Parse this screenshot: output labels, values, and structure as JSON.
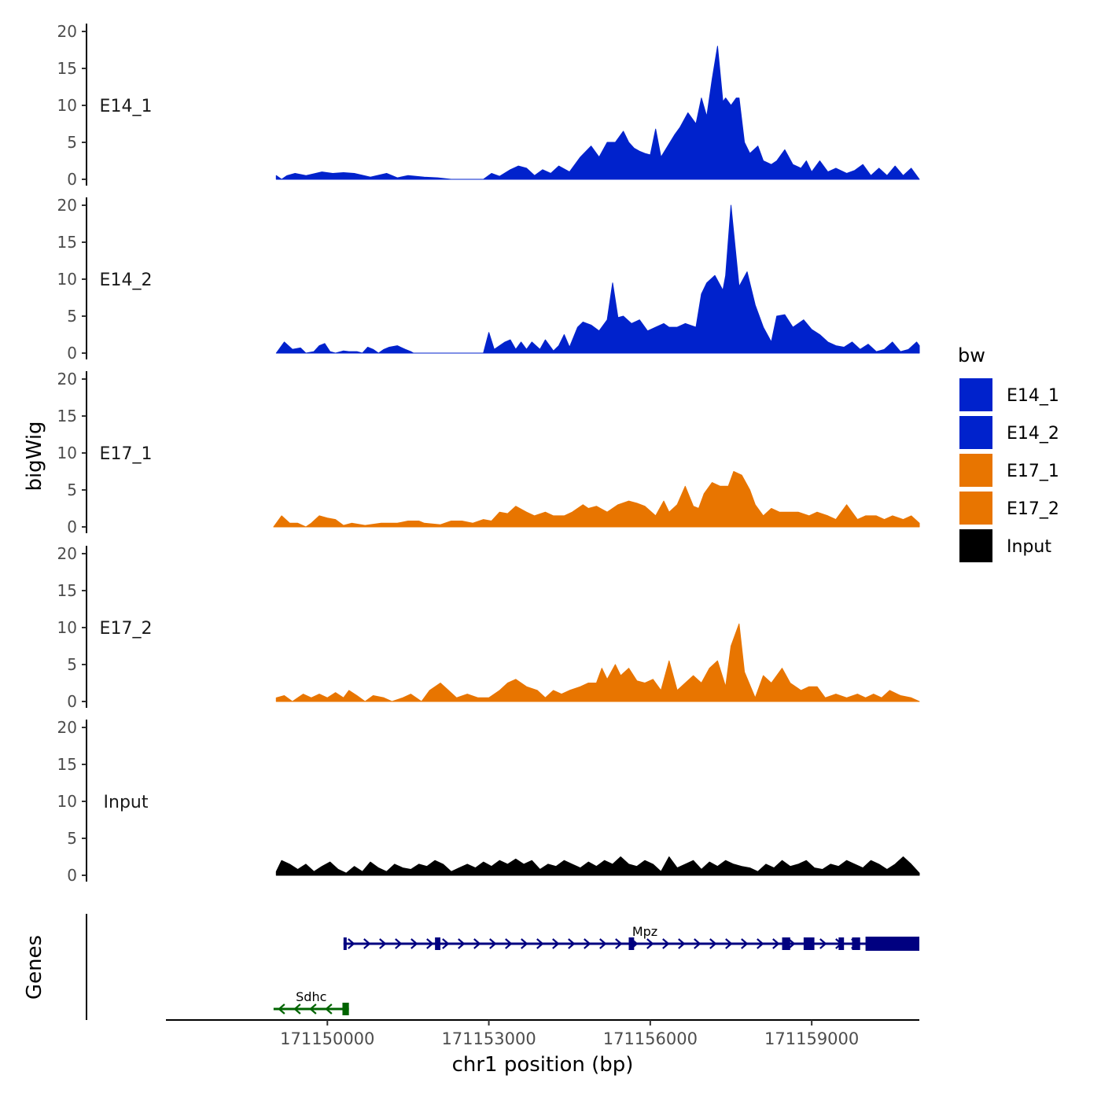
{
  "chart_data": {
    "type": "area",
    "y_axis_title": "bigWig",
    "x_axis_title": "chr1 position (bp)",
    "genes_axis_title": "Genes",
    "legend_title": "bw",
    "legend_position": "right",
    "x_range": [
      171147000,
      171161000
    ],
    "y_range": [
      0,
      20
    ],
    "y_ticks": [
      0,
      5,
      10,
      15,
      20
    ],
    "y_tick_labels": [
      "0",
      "5",
      "10",
      "15",
      "20"
    ],
    "x_ticks": [
      171150000,
      171153000,
      171156000,
      171159000
    ],
    "x_tick_labels": [
      "171150000",
      "171153000",
      "171156000",
      "171159000"
    ],
    "series": [
      {
        "name": "E14_1",
        "color": "#0022cc",
        "x": [
          171149050,
          171149150,
          171149250,
          171149400,
          171149600,
          171149900,
          171150100,
          171150300,
          171150500,
          171150800,
          171151100,
          171151300,
          171151500,
          171151800,
          171152050,
          171152300,
          171152500,
          171152900,
          171153050,
          171153200,
          171153400,
          171153550,
          171153700,
          171153850,
          171154000,
          171154150,
          171154300,
          171154500,
          171154700,
          171154900,
          171155050,
          171155200,
          171155350,
          171155500,
          171155600,
          171155700,
          171155800,
          171155900,
          171156000,
          171156100,
          171156200,
          171156350,
          171156450,
          171156550,
          171156700,
          171156850,
          171156950,
          171157050,
          171157150,
          171157250,
          171157350,
          171157400,
          171157500,
          171157600,
          171157650,
          171157750,
          171157850,
          171158000,
          171158100,
          171158250,
          171158350,
          171158500,
          171158650,
          171158800,
          171158900,
          171159000,
          171159150,
          171159300,
          171159450,
          171159650,
          171159800,
          171159950,
          171160100,
          171160250,
          171160400,
          171160550,
          171160700,
          171160850,
          171161000
        ],
        "y": [
          0.5,
          0,
          0.5,
          0.8,
          0.5,
          1.0,
          0.8,
          0.9,
          0.8,
          0.3,
          0.8,
          0.2,
          0.5,
          0.3,
          0.2,
          0,
          0,
          0,
          0.8,
          0.4,
          1.3,
          1.8,
          1.5,
          0.5,
          1.3,
          0.8,
          1.8,
          1.0,
          3.0,
          4.5,
          3.0,
          5.0,
          5.0,
          6.5,
          5.0,
          4.2,
          3.8,
          3.5,
          3.3,
          6.8,
          3.0,
          4.8,
          6.0,
          7.0,
          9.0,
          7.5,
          11.0,
          8.5,
          13.5,
          18.0,
          10.5,
          11.0,
          10.0,
          11.0,
          11.0,
          5.0,
          3.5,
          4.5,
          2.5,
          2.0,
          2.5,
          4.0,
          2.0,
          1.5,
          2.5,
          1.0,
          2.5,
          1.0,
          1.5,
          0.8,
          1.2,
          2.0,
          0.5,
          1.5,
          0.5,
          1.8,
          0.5,
          1.5,
          0
        ]
      },
      {
        "name": "E14_2",
        "color": "#0022cc",
        "x": [
          171149050,
          171149200,
          171149350,
          171149500,
          171149600,
          171149750,
          171149850,
          171149950,
          171150050,
          171150150,
          171150300,
          171150400,
          171150550,
          171150650,
          171150750,
          171150850,
          171150950,
          171151050,
          171151150,
          171151300,
          171151450,
          171151550,
          171151600,
          171152900,
          171153000,
          171153100,
          171153200,
          171153300,
          171153400,
          171153500,
          171153600,
          171153700,
          171153800,
          171153950,
          171154050,
          171154200,
          171154300,
          171154400,
          171154500,
          171154650,
          171154750,
          171154900,
          171155050,
          171155200,
          171155300,
          171155400,
          171155500,
          171155650,
          171155800,
          171155950,
          171156100,
          171156250,
          171156350,
          171156500,
          171156650,
          171156850,
          171156950,
          171157050,
          171157200,
          171157350,
          171157400,
          171157500,
          171157650,
          171157800,
          171157950,
          171158100,
          171158250,
          171158350,
          171158500,
          171158650,
          171158850,
          171159000,
          171159150,
          171159300,
          171159450,
          171159600,
          171159750,
          171159900,
          171160050,
          171160200,
          171160350,
          171160500,
          171160650,
          171160800,
          171160950,
          171161000
        ],
        "y": [
          0,
          1.5,
          0.5,
          0.7,
          0,
          0.2,
          1.0,
          1.3,
          0.2,
          0,
          0.3,
          0.2,
          0.2,
          0,
          0.8,
          0.5,
          0,
          0.5,
          0.8,
          1.0,
          0.5,
          0.2,
          0,
          0,
          2.8,
          0.5,
          1.0,
          1.5,
          1.8,
          0.5,
          1.5,
          0.5,
          1.5,
          0.5,
          1.8,
          0.3,
          1.0,
          2.5,
          0.8,
          3.5,
          4.2,
          3.8,
          3.0,
          4.5,
          9.5,
          4.8,
          5.0,
          4.0,
          4.5,
          3.0,
          3.5,
          4.0,
          3.5,
          3.5,
          4.0,
          3.5,
          8.0,
          9.5,
          10.5,
          8.5,
          10.5,
          20.0,
          9.0,
          11.0,
          6.5,
          3.5,
          1.5,
          5.0,
          5.2,
          3.5,
          4.5,
          3.2,
          2.5,
          1.5,
          1.0,
          0.8,
          1.5,
          0.5,
          1.2,
          0.2,
          0.5,
          1.5,
          0.2,
          0.5,
          1.5,
          1.0
        ]
      },
      {
        "name": "E17_1",
        "color": "#e87500",
        "x": [
          171149000,
          171149150,
          171149300,
          171149450,
          171149600,
          171149700,
          171149850,
          171150000,
          171150150,
          171150300,
          171150450,
          171150700,
          171151000,
          171151300,
          171151500,
          171151700,
          171151800,
          171152100,
          171152300,
          171152500,
          171152700,
          171152900,
          171153050,
          171153200,
          171153350,
          171153500,
          171153700,
          171153850,
          171154050,
          171154200,
          171154400,
          171154550,
          171154750,
          171154850,
          171155000,
          171155200,
          171155400,
          171155600,
          171155750,
          171155900,
          171156100,
          171156250,
          171156350,
          171156500,
          171156650,
          171156800,
          171156900,
          171157000,
          171157150,
          171157300,
          171157450,
          171157550,
          171157700,
          171157850,
          171157950,
          171158100,
          171158250,
          171158400,
          171158550,
          171158750,
          171158950,
          171159100,
          171159300,
          171159450,
          171159650,
          171159850,
          171160000,
          171160200,
          171160350,
          171160500,
          171160700,
          171160850,
          171161000
        ],
        "y": [
          0,
          1.5,
          0.5,
          0.5,
          0,
          0.5,
          1.5,
          1.2,
          1.0,
          0.2,
          0.5,
          0.2,
          0.5,
          0.5,
          0.8,
          0.8,
          0.5,
          0.3,
          0.8,
          0.8,
          0.5,
          1.0,
          0.8,
          2.0,
          1.8,
          2.8,
          2.0,
          1.5,
          2.0,
          1.5,
          1.5,
          2.0,
          3.0,
          2.5,
          2.8,
          2.0,
          3.0,
          3.5,
          3.2,
          2.8,
          1.5,
          3.5,
          2.0,
          3.0,
          5.5,
          2.8,
          2.5,
          4.5,
          6.0,
          5.5,
          5.5,
          7.5,
          7.0,
          5.0,
          3.0,
          1.5,
          2.5,
          2.0,
          2.0,
          2.0,
          1.5,
          2.0,
          1.5,
          1.0,
          3.0,
          1.0,
          1.5,
          1.5,
          1.0,
          1.5,
          1.0,
          1.5,
          0.5
        ]
      },
      {
        "name": "E17_2",
        "color": "#e87500",
        "x": [
          171149050,
          171149200,
          171149350,
          171149550,
          171149700,
          171149850,
          171150000,
          171150150,
          171150300,
          171150400,
          171150550,
          171150700,
          171150850,
          171151050,
          171151200,
          171151400,
          171151550,
          171151750,
          171151900,
          171152100,
          171152250,
          171152400,
          171152600,
          171152800,
          171153000,
          171153200,
          171153350,
          171153500,
          171153700,
          171153900,
          171154050,
          171154200,
          171154350,
          171154500,
          171154700,
          171154850,
          171155000,
          171155100,
          171155200,
          171155350,
          171155450,
          171155600,
          171155750,
          171155900,
          171156050,
          171156200,
          171156350,
          171156500,
          171156650,
          171156800,
          171156950,
          171157100,
          171157250,
          171157400,
          171157500,
          171157650,
          171157750,
          171157950,
          171158100,
          171158250,
          171158450,
          171158600,
          171158800,
          171158950,
          171159100,
          171159250,
          171159450,
          171159650,
          171159850,
          171160000,
          171160150,
          171160300,
          171160450,
          171160650,
          171160850,
          171161000
        ],
        "y": [
          0.5,
          0.8,
          0,
          1.0,
          0.5,
          1.0,
          0.5,
          1.2,
          0.5,
          1.5,
          0.8,
          0,
          0.8,
          0.5,
          0,
          0.5,
          1.0,
          0,
          1.5,
          2.5,
          1.5,
          0.5,
          1.0,
          0.5,
          0.5,
          1.5,
          2.5,
          3.0,
          2.0,
          1.5,
          0.5,
          1.5,
          1.0,
          1.5,
          2.0,
          2.5,
          2.5,
          4.5,
          3.0,
          5.0,
          3.5,
          4.5,
          2.8,
          2.5,
          3.0,
          1.5,
          5.5,
          1.5,
          2.5,
          3.5,
          2.5,
          4.5,
          5.5,
          2.0,
          7.5,
          10.5,
          4.0,
          0.5,
          3.5,
          2.5,
          4.5,
          2.5,
          1.5,
          2.0,
          2.0,
          0.5,
          1.0,
          0.5,
          1.0,
          0.5,
          1.0,
          0.5,
          1.5,
          0.8,
          0.5,
          0
        ]
      },
      {
        "name": "Input",
        "color": "#000000",
        "x": [
          171149050,
          171149150,
          171149300,
          171149450,
          171149600,
          171149750,
          171149900,
          171150050,
          171150200,
          171150350,
          171150500,
          171150650,
          171150800,
          171150950,
          171151100,
          171151250,
          171151400,
          171151550,
          171151700,
          171151850,
          171152000,
          171152150,
          171152300,
          171152450,
          171152600,
          171152750,
          171152900,
          171153050,
          171153200,
          171153350,
          171153500,
          171153650,
          171153800,
          171153950,
          171154100,
          171154250,
          171154400,
          171154550,
          171154700,
          171154850,
          171155000,
          171155150,
          171155300,
          171155450,
          171155600,
          171155750,
          171155900,
          171156050,
          171156200,
          171156350,
          171156500,
          171156650,
          171156800,
          171156950,
          171157100,
          171157250,
          171157400,
          171157550,
          171157700,
          171157850,
          171158000,
          171158150,
          171158300,
          171158450,
          171158600,
          171158750,
          171158900,
          171159050,
          171159200,
          171159350,
          171159500,
          171159650,
          171159800,
          171159950,
          171160100,
          171160250,
          171160400,
          171160550,
          171160700,
          171160850,
          171161000
        ],
        "y": [
          0.5,
          2.0,
          1.5,
          0.8,
          1.5,
          0.5,
          1.2,
          1.8,
          0.8,
          0.3,
          1.2,
          0.5,
          1.8,
          1.0,
          0.5,
          1.5,
          1.0,
          0.8,
          1.5,
          1.2,
          2.0,
          1.5,
          0.5,
          1.0,
          1.5,
          1.0,
          1.8,
          1.2,
          2.0,
          1.5,
          2.2,
          1.5,
          2.0,
          0.8,
          1.5,
          1.2,
          2.0,
          1.5,
          1.0,
          1.8,
          1.2,
          2.0,
          1.5,
          2.5,
          1.5,
          1.2,
          2.0,
          1.5,
          0.5,
          2.5,
          1.0,
          1.5,
          2.0,
          0.8,
          1.8,
          1.2,
          2.0,
          1.5,
          1.2,
          1.0,
          0.5,
          1.5,
          1.0,
          2.0,
          1.2,
          1.5,
          2.0,
          1.0,
          0.8,
          1.5,
          1.2,
          2.0,
          1.5,
          1.0,
          2.0,
          1.5,
          0.8,
          1.5,
          2.5,
          1.5,
          0.3
        ]
      }
    ],
    "genes": [
      {
        "name": "Mpz",
        "strand": "+",
        "color": "#000080",
        "start": 171150300,
        "end": 171161000,
        "exons": [
          [
            171150300,
            171150330
          ],
          [
            171152000,
            171152100
          ],
          [
            171155600,
            171155700
          ],
          [
            171158450,
            171158600
          ],
          [
            171158850,
            171159050
          ],
          [
            171159500,
            171159600
          ],
          [
            171159750,
            171159900
          ],
          [
            171160000,
            171161000
          ]
        ]
      },
      {
        "name": "Sdhc",
        "strand": "-",
        "color": "#006400",
        "start": 171149000,
        "end": 171150400,
        "exons": [
          [
            171150280,
            171150400
          ]
        ]
      }
    ]
  }
}
